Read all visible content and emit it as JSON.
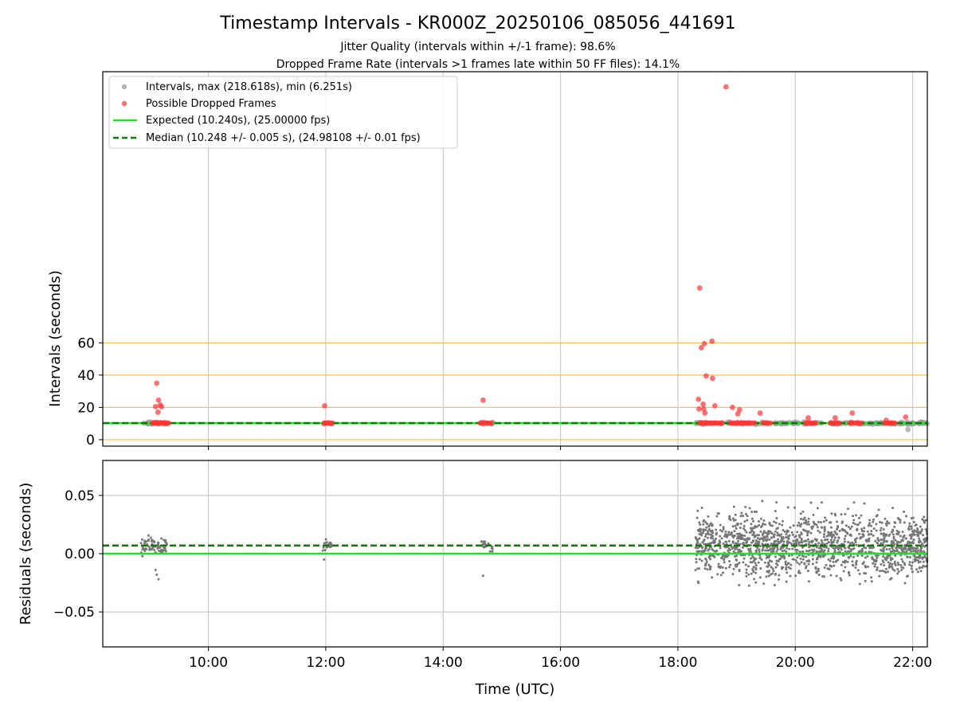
{
  "figure": {
    "title": "Timestamp Intervals - KR000Z_20250106_085056_441691",
    "subtitle1": "Jitter Quality (intervals within +/-1 frame): 98.6%",
    "subtitle2": "Dropped Frame Rate (intervals >1 frames late within 50 FF files): 14.1%"
  },
  "chart_data": [
    {
      "type": "scatter",
      "ylabel": "Intervals (seconds)",
      "xlabel": "",
      "x_unit": "hours UTC",
      "xlim": [
        8.2,
        22.25
      ],
      "ylim": [
        -4,
        228
      ],
      "yticks": [
        0,
        20,
        40,
        60
      ],
      "xticks": [
        "10:00",
        "12:00",
        "14:00",
        "16:00",
        "18:00",
        "20:00",
        "22:00"
      ],
      "xtick_values": [
        10,
        12,
        14,
        16,
        18,
        20,
        22
      ],
      "grid": true,
      "legend_position": "top-left",
      "colors": {
        "intervals": "#999999",
        "dropped": "#ff3333",
        "expected": "#18e818",
        "median": "#0a7a0a",
        "hline": "#ffc04d"
      },
      "hlines": [
        0,
        20,
        40,
        60
      ],
      "expected_value": 10.24,
      "median_value": 10.248,
      "series": [
        {
          "name": "Intervals, max (218.618s), min (6.251s)",
          "kind": "intervals"
        },
        {
          "name": "Possible Dropped Frames",
          "kind": "dropped",
          "points": [
            [
              9.12,
              35.0
            ],
            [
              9.15,
              24.5
            ],
            [
              9.18,
              21.5
            ],
            [
              9.1,
              20.5
            ],
            [
              9.2,
              20.5
            ],
            [
              9.14,
              17.0
            ],
            [
              11.98,
              21.0
            ],
            [
              14.68,
              24.5
            ],
            [
              18.37,
              94.0
            ],
            [
              18.82,
              218.6
            ],
            [
              18.4,
              57.0
            ],
            [
              18.45,
              59.5
            ],
            [
              18.58,
              61.0
            ],
            [
              18.48,
              39.5
            ],
            [
              18.59,
              38.0
            ],
            [
              18.35,
              25.0
            ],
            [
              18.43,
              22.0
            ],
            [
              18.44,
              19.0
            ],
            [
              18.63,
              21.0
            ],
            [
              18.46,
              16.5
            ],
            [
              18.36,
              19.0
            ],
            [
              18.93,
              20.0
            ],
            [
              19.05,
              18.5
            ],
            [
              19.02,
              16.0
            ],
            [
              19.4,
              16.5
            ],
            [
              20.22,
              13.5
            ],
            [
              20.68,
              13.5
            ],
            [
              20.97,
              16.5
            ],
            [
              21.55,
              12.0
            ],
            [
              21.88,
              14.0
            ]
          ]
        },
        {
          "name": "Expected (10.240s), (25.00000 fps)",
          "kind": "expected"
        },
        {
          "name": "Median (10.248 +/- 0.005 s), (24.98108 +/- 0.01 fps)",
          "kind": "median"
        }
      ]
    },
    {
      "type": "scatter",
      "ylabel": "Residuals (seconds)",
      "xlabel": "Time (UTC)",
      "x_unit": "hours UTC",
      "xlim": [
        8.2,
        22.25
      ],
      "ylim": [
        -0.08,
        0.08
      ],
      "yticks": [
        "0.05",
        "0.00",
        "−0.05"
      ],
      "ytick_values": [
        0.05,
        0,
        -0.05
      ],
      "xticks": [
        "10:00",
        "12:00",
        "14:00",
        "16:00",
        "18:00",
        "20:00",
        "22:00"
      ],
      "xtick_values": [
        10,
        12,
        14,
        16,
        18,
        20,
        22
      ],
      "grid": true,
      "expected_residual": 0.0,
      "median_residual": 0.007,
      "series": [
        {
          "name": "",
          "kind": "residuals",
          "clusters": [
            {
              "x": [
                8.85,
                9.3
              ],
              "center": 0.007,
              "spread": 0.004,
              "n": 70
            },
            {
              "x": [
                11.95,
                12.1
              ],
              "center": 0.007,
              "spread": 0.002,
              "n": 25
            },
            {
              "x": [
                14.65,
                14.85
              ],
              "center": 0.007,
              "spread": 0.002,
              "n": 25
            },
            {
              "x": [
                18.3,
                22.25
              ],
              "center": 0.007,
              "spread": 0.013,
              "n": 1500
            }
          ],
          "outliers": [
            [
              9.1,
              -0.014
            ],
            [
              9.12,
              -0.018
            ],
            [
              9.15,
              -0.022
            ],
            [
              9.2,
              0.013
            ],
            [
              11.97,
              -0.005
            ],
            [
              14.68,
              -0.019
            ],
            [
              18.35,
              -0.025
            ],
            [
              18.3,
              -0.014
            ],
            [
              18.88,
              0.031
            ],
            [
              19.15,
              0.04
            ],
            [
              19.68,
              0.044
            ],
            [
              20.45,
              0.044
            ],
            [
              19.65,
              -0.027
            ],
            [
              19.85,
              -0.024
            ],
            [
              21.85,
              0.036
            ],
            [
              21.1,
              -0.026
            ],
            [
              21.4,
              0.033
            ]
          ]
        }
      ]
    }
  ]
}
